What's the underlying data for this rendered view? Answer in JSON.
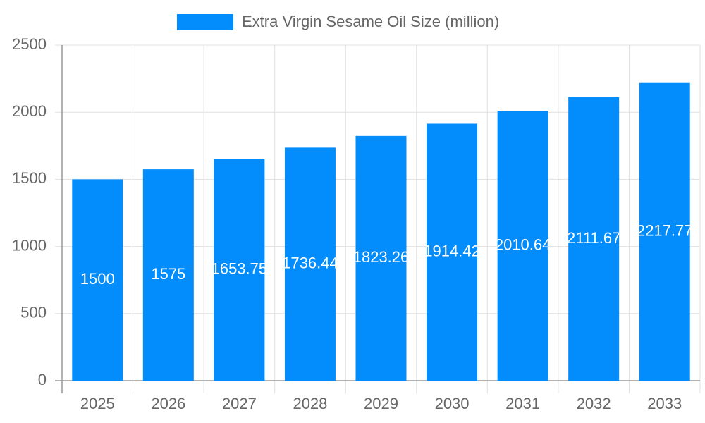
{
  "chart_data": {
    "type": "bar",
    "categories": [
      "2025",
      "2026",
      "2027",
      "2028",
      "2029",
      "2030",
      "2031",
      "2032",
      "2033"
    ],
    "series": [
      {
        "name": "Extra Virgin Sesame Oil Size (million)",
        "color": "#038cfc",
        "values": [
          1500,
          1575,
          1653.75,
          1736.44,
          1823.26,
          1914.42,
          2010.64,
          2111.67,
          2217.77
        ]
      }
    ],
    "ylim": [
      0,
      2500
    ],
    "yticks": [
      0,
      500,
      1000,
      1500,
      2000,
      2500
    ],
    "grid": true,
    "legend": "top"
  }
}
